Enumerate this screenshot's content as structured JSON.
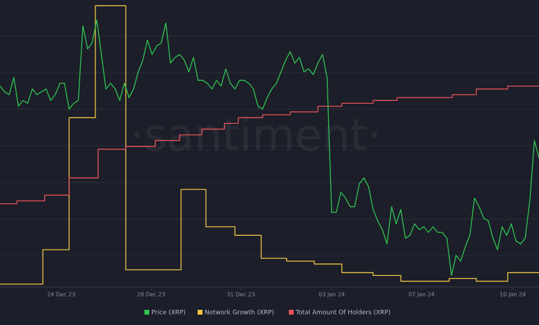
{
  "chart_data": {
    "type": "line",
    "watermark": "·santiment·",
    "xlim": [
      0,
      117
    ],
    "ylim": [
      0,
      100
    ],
    "xticks": [
      {
        "value": 13.3,
        "label": "24 Dec 23"
      },
      {
        "value": 32.8,
        "label": "28 Dec 23"
      },
      {
        "value": 52.3,
        "label": "31 Dec 23"
      },
      {
        "value": 72,
        "label": "03 Jan 24"
      },
      {
        "value": 91.5,
        "label": "07 Jan 24"
      },
      {
        "value": 111.3,
        "label": "10 Jan 24"
      }
    ],
    "series": [
      {
        "name": "Price (XRP)",
        "color": "#2fc752",
        "values": [
          70,
          68,
          67,
          73,
          63,
          65,
          64,
          69,
          67,
          68,
          69,
          65,
          67,
          71,
          71,
          62,
          64,
          65,
          91,
          83,
          85,
          93,
          81,
          69,
          71,
          69,
          65,
          71,
          66,
          69,
          75,
          79,
          86,
          81,
          84,
          85,
          92,
          78,
          80,
          81,
          79,
          75,
          80,
          72,
          72,
          71,
          69,
          72,
          70,
          76,
          71,
          69,
          72,
          72,
          71,
          69,
          63,
          62,
          66,
          69,
          71,
          75,
          79,
          82,
          78,
          80,
          75,
          76,
          74,
          78,
          81,
          73,
          26,
          26,
          33,
          31,
          28,
          28,
          36,
          38,
          35,
          27,
          23,
          20,
          15,
          28,
          22,
          27,
          17,
          18,
          22,
          20,
          21,
          19,
          21,
          19,
          19,
          17,
          4,
          11,
          9,
          14,
          18,
          31,
          28,
          24,
          23,
          17,
          13,
          21,
          18,
          22,
          16,
          15,
          17,
          30,
          51,
          45
        ]
      },
      {
        "name": "Network Growth (XRP)",
        "color": "#f2c744",
        "step": true,
        "x": [
          0,
          9.3,
          15,
          20.7,
          27.3,
          39.3,
          44.7,
          51,
          56.7,
          62.2,
          68.2,
          74.2,
          81,
          87,
          92.2,
          97.5,
          103.4,
          110.2,
          115.1
        ],
        "values": [
          1,
          13,
          59,
          98,
          6,
          34,
          21,
          18,
          10,
          9,
          8,
          5,
          4,
          2,
          2,
          3,
          2,
          5,
          5
        ]
      },
      {
        "name": "Total Amount Of Holders (XRP)",
        "color": "#e8545c",
        "step": true,
        "x": [
          0,
          3.7,
          9.7,
          15,
          21.3,
          27.3,
          33.7,
          39,
          43.8,
          48.7,
          51.7,
          57,
          63,
          69,
          74.2,
          81,
          86.2,
          92.2,
          98.2,
          103.4,
          110.2
        ],
        "values": [
          29,
          30,
          32,
          38,
          48,
          49,
          51,
          53,
          55,
          57,
          59,
          60,
          61,
          63,
          64,
          65,
          66,
          66,
          67,
          69,
          70
        ]
      }
    ]
  }
}
